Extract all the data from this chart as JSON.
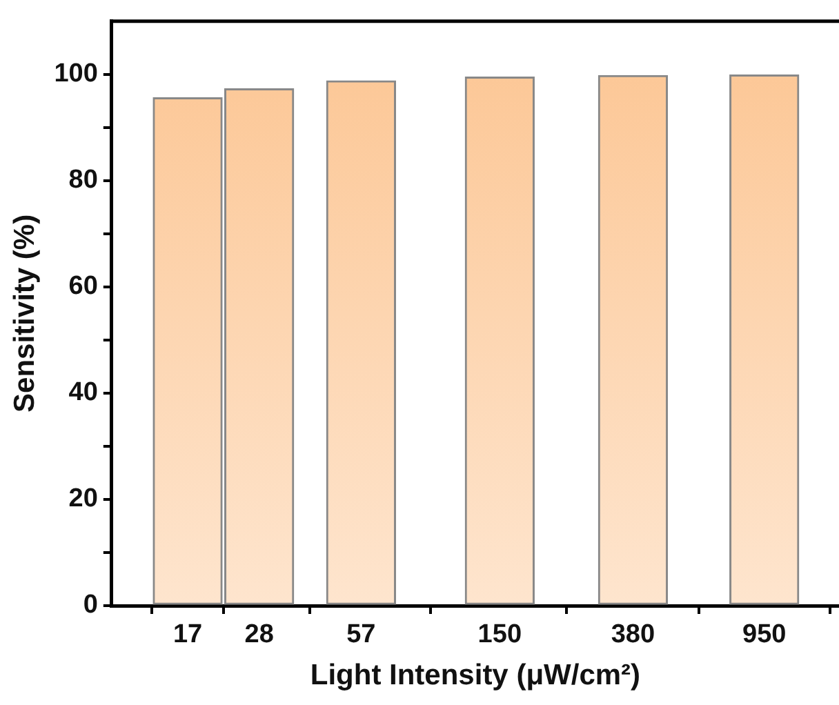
{
  "chart_data": {
    "type": "bar",
    "xlabel": "Light Intensity (μW/cm²)",
    "ylabel": "Sensitivity (%)",
    "x": [
      17,
      28,
      57,
      150,
      380,
      950
    ],
    "values": [
      95.6,
      97.3,
      98.8,
      99.5,
      99.8,
      99.9
    ],
    "color": "#fcc592",
    "log": "x",
    "xlim": [
      10,
      1600
    ],
    "xticks": [
      17,
      28,
      57,
      150,
      380,
      950
    ],
    "ylim": [
      0,
      110
    ],
    "yticks": [
      0,
      {
        "value": 10,
        "label": null
      },
      20,
      {
        "value": 30,
        "label": null
      },
      40,
      {
        "value": 50,
        "label": null
      },
      60,
      {
        "value": 70,
        "label": null
      },
      80,
      {
        "value": 90,
        "label": null
      },
      100
    ],
    "grid": false,
    "legend": false
  }
}
